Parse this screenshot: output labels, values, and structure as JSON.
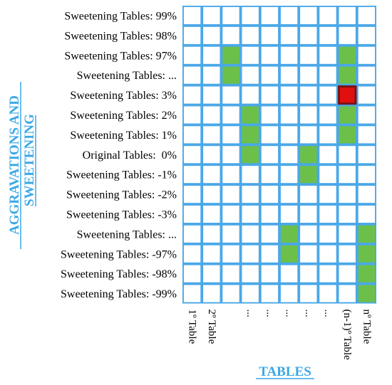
{
  "axis": {
    "y_title_line1": "AGGRAVATIONS AND",
    "y_title_line2": "SWEETENING",
    "x_title": "TABLES"
  },
  "rows": [
    "Sweetening Tables: 99%",
    "Sweetening Tables: 98%",
    "Sweetening Tables: 97%",
    "Sweetening Tables: ...",
    "Sweetening Tables: 3%",
    "Sweetening Tables: 2%",
    "Sweetening Tables: 1%",
    "Original Tables:  0%",
    "Sweetening Tables: -1%",
    "Sweetening Tables: -2%",
    "Sweetening Tables: -3%",
    "Sweetening Tables: ...",
    "Sweetening Tables: -97%",
    "Sweetening Tables: -98%",
    "Sweetening Tables: -99%"
  ],
  "columns": [
    "1º Table",
    "2º Table",
    "",
    "...",
    "...",
    "...",
    "...",
    "...",
    "(n-1)º Table",
    "nº Table"
  ],
  "highlighted_cells": [
    {
      "row": 2,
      "col": 2,
      "state": "green"
    },
    {
      "row": 3,
      "col": 2,
      "state": "green"
    },
    {
      "row": 5,
      "col": 3,
      "state": "green"
    },
    {
      "row": 6,
      "col": 3,
      "state": "green"
    },
    {
      "row": 7,
      "col": 3,
      "state": "green"
    },
    {
      "row": 7,
      "col": 6,
      "state": "green"
    },
    {
      "row": 8,
      "col": 6,
      "state": "green"
    },
    {
      "row": 11,
      "col": 5,
      "state": "green"
    },
    {
      "row": 12,
      "col": 5,
      "state": "green"
    },
    {
      "row": 2,
      "col": 8,
      "state": "green"
    },
    {
      "row": 3,
      "col": 8,
      "state": "green"
    },
    {
      "row": 4,
      "col": 8,
      "state": "red"
    },
    {
      "row": 5,
      "col": 8,
      "state": "green"
    },
    {
      "row": 6,
      "col": 8,
      "state": "green"
    },
    {
      "row": 11,
      "col": 9,
      "state": "green"
    },
    {
      "row": 12,
      "col": 9,
      "state": "green"
    },
    {
      "row": 13,
      "col": 9,
      "state": "green"
    },
    {
      "row": 14,
      "col": 9,
      "state": "green"
    }
  ],
  "colors": {
    "grid": "#4aa8e8",
    "cell": "#ffffff",
    "green": "#6cc04a",
    "red": "#e01010",
    "red_border": "#7a1414",
    "title": "#3aa8e6"
  }
}
